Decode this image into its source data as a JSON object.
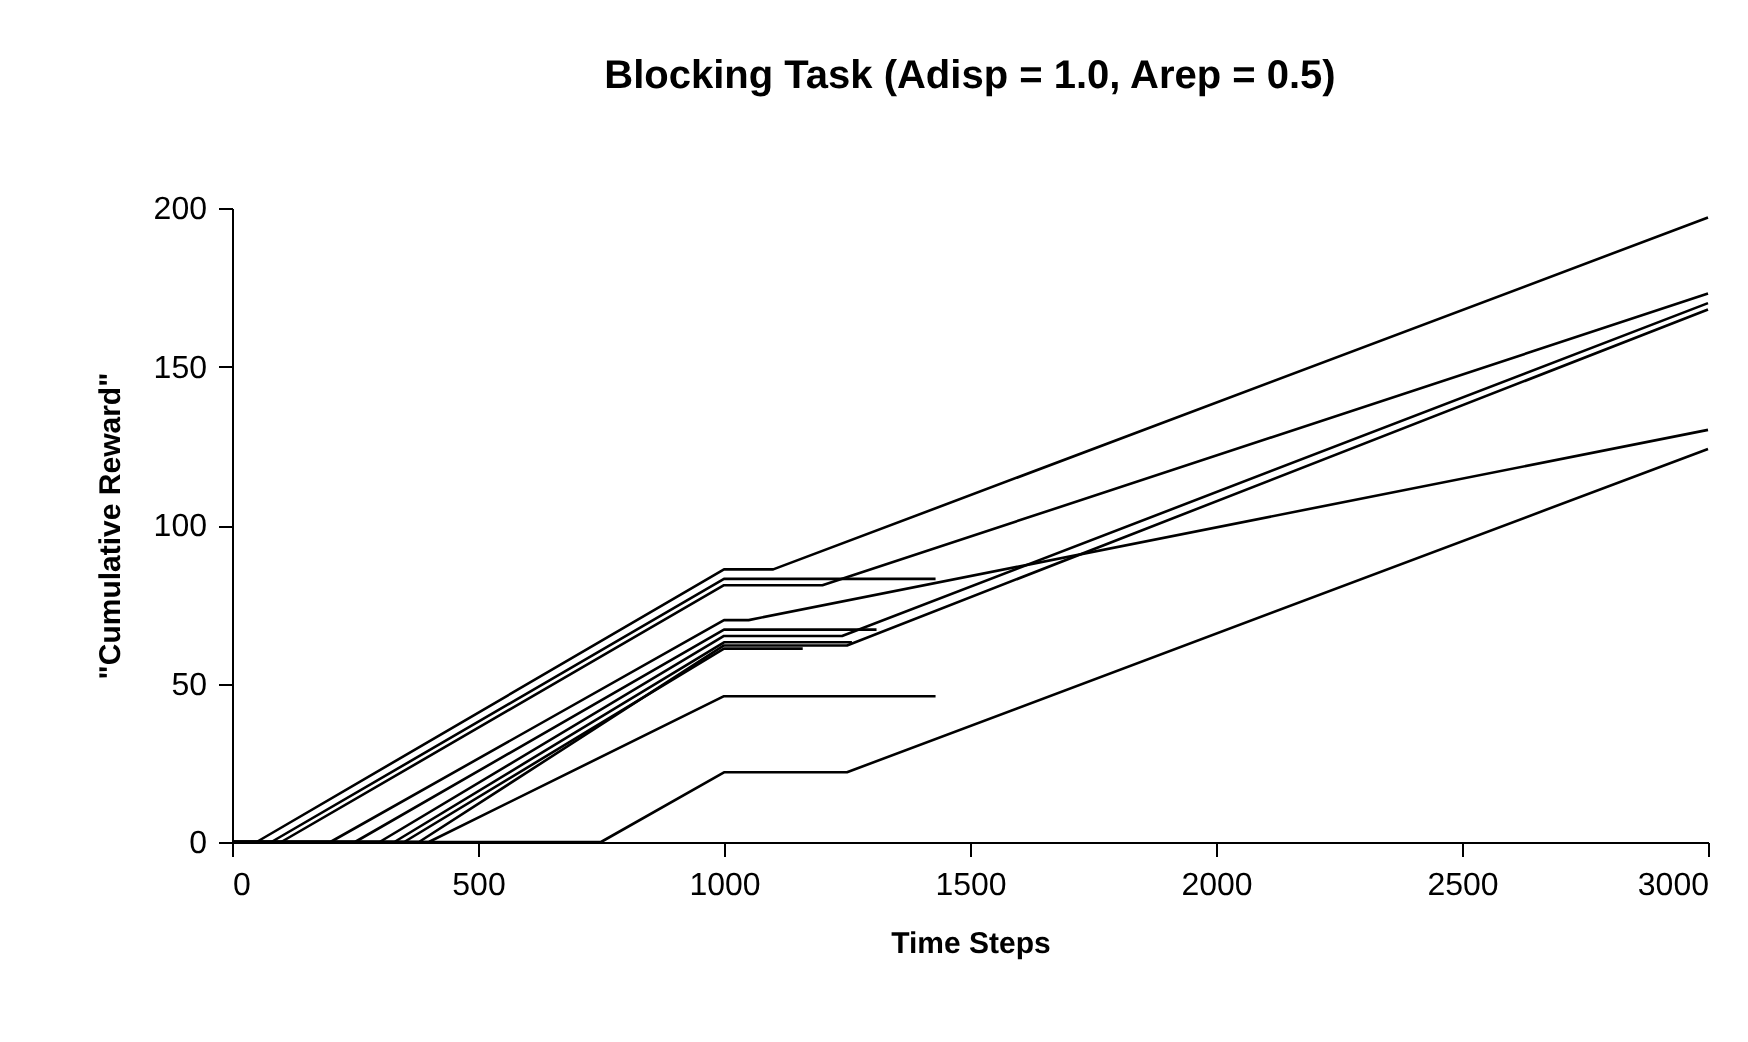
{
  "chart_data": {
    "type": "line",
    "title": "Blocking Task (Adisp = 1.0, Arep = 0.5)",
    "xlabel": "Time Steps",
    "ylabel": "\"Cumulative Reward\"",
    "xlim": [
      0,
      3000
    ],
    "xticks": [
      0,
      500,
      1000,
      1500,
      2000,
      2500,
      3000
    ],
    "ylim": [
      0,
      200
    ],
    "yticks": [
      0,
      50,
      100,
      150,
      200
    ],
    "grid": false,
    "legend": false,
    "marker": "none",
    "line_style": "solid",
    "series": [
      {
        "color": "#000000",
        "x": [
          0,
          50,
          1000,
          1100,
          3000
        ],
        "values": [
          0,
          0,
          86,
          86,
          197
        ]
      },
      {
        "color": "#000000",
        "x": [
          0,
          80,
          1000,
          1430
        ],
        "values": [
          0,
          0,
          83,
          83
        ]
      },
      {
        "color": "#000000",
        "x": [
          0,
          100,
          1000,
          1200,
          3000
        ],
        "values": [
          0,
          0,
          81,
          81,
          173
        ]
      },
      {
        "color": "#000000",
        "x": [
          0,
          200,
          1000,
          1050,
          3000
        ],
        "values": [
          0,
          0,
          70,
          70,
          130
        ]
      },
      {
        "color": "#000000",
        "x": [
          0,
          250,
          1000,
          1310
        ],
        "values": [
          0,
          0,
          67,
          67
        ]
      },
      {
        "color": "#000000",
        "x": [
          0,
          300,
          1000,
          1240,
          3000
        ],
        "values": [
          0,
          0,
          65,
          65,
          170
        ]
      },
      {
        "color": "#000000",
        "x": [
          0,
          330,
          1000,
          1260
        ],
        "values": [
          0,
          0,
          63,
          63
        ]
      },
      {
        "color": "#000000",
        "x": [
          0,
          350,
          1000,
          1160
        ],
        "values": [
          0,
          0,
          61,
          61
        ]
      },
      {
        "color": "#000000",
        "x": [
          0,
          380,
          1000,
          1250,
          3000
        ],
        "values": [
          0,
          0,
          62,
          62,
          168
        ]
      },
      {
        "color": "#000000",
        "x": [
          0,
          400,
          1000,
          1430
        ],
        "values": [
          0,
          0,
          46,
          46
        ]
      },
      {
        "color": "#000000",
        "x": [
          0,
          750,
          1000,
          1250,
          3000
        ],
        "values": [
          0,
          0,
          22,
          22,
          124
        ]
      }
    ]
  }
}
